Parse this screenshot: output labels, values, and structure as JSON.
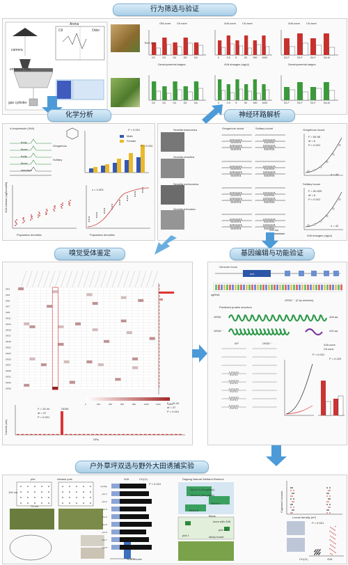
{
  "sections": {
    "s1": "行为筛选与验证",
    "s2": "化学分析",
    "s3": "神经环路解析",
    "s4": "嗅觉受体鉴定",
    "s5": "基因编辑与功能验证",
    "s6": "户外草坪双选与野外大田诱捕实验"
  },
  "panel1": {
    "labels": {
      "camera": "camera",
      "entrance": "entrance hole",
      "gas": "gas cylinder",
      "arena": "Arena",
      "odor": "Odor",
      "ctrl": "Ctl"
    },
    "bars_left": {
      "legend_a": "OM zone",
      "legend_b": "Ctl zone",
      "xlabel": "Developmental stages",
      "ylabel": "Time (%)",
      "categories": [
        "G2",
        "G3",
        "G4",
        "G5",
        "GA"
      ]
    },
    "bars_mid": {
      "legend_a": "4VA zone",
      "legend_b": "Ctl zone",
      "xlabel": "4VA dosages (ng/μl)",
      "categories": [
        "0",
        "0.5",
        "5",
        "50",
        "500",
        "1000"
      ]
    },
    "bars_right": {
      "legend_a": "4VA zone",
      "legend_b": "Ctl zone",
      "xlabel": "Developmental stages",
      "categories": [
        "S2-F",
        "S3-F",
        "S4-F",
        "SA-M"
      ]
    }
  },
  "panel2": {
    "compound": "4-vinylanisole (4VA)",
    "traces": [
      "body",
      "feces",
      "body",
      "feces",
      "standard"
    ],
    "trace_groups": [
      "Gregarious",
      "Solitary"
    ],
    "legend": [
      "Male",
      "Female"
    ],
    "xlabel": "Population densities",
    "ylabel": "4VA release (ng/locust/h)",
    "fit": "x = 4.404",
    "stats": [
      "P = 0.001",
      "P = 0.004"
    ]
  },
  "panel3": {
    "sensilla": [
      "Sensilla basiconica",
      "Sensilla chaetica",
      "Sensilla coeloconica",
      "Sensilla trichodea"
    ],
    "doses": [
      "control",
      "5 ng/μl",
      "500 ng/μl"
    ],
    "columns": [
      "Gregarious locust",
      "Solitary locust"
    ],
    "scale": "200 ms",
    "ylabel": "Spikes/s",
    "greg_stats": [
      "F = 85.58",
      "df = 6",
      "P < 0.001",
      "n = 44"
    ],
    "sol_stats": [
      "F = 50.529",
      "df = 6",
      "P < 0.001",
      "n = 43"
    ],
    "xlabel": "4VA dosages (ng/μl)"
  },
  "panel4": {
    "colorbar_ticks": [
      "0",
      "200",
      "400",
      "600",
      "800",
      "1000",
      "1200",
      "1400"
    ],
    "rows": [
      "OR1",
      "OR2",
      "OR3",
      "OR4",
      "OR5",
      "OR6",
      "OR7",
      "OR8",
      "OR9",
      "OR10",
      "OR11",
      "OR12",
      "OR13",
      "OR14",
      "OR15",
      "OR16",
      "OR17",
      "OR18",
      "OR19",
      "OR20",
      "OR21",
      "OR22",
      "OR23",
      "OR24",
      "OR25",
      "OR26",
      "OR27",
      "OR28",
      "OR29",
      "OR30",
      "OR31",
      "OR32",
      "OR33",
      "OR34",
      "OR35"
    ],
    "highlight": "OR35",
    "current_label": "Current (nA)",
    "xaxis": "ORs",
    "stats": [
      "F = 15.44",
      "df = 37",
      "P < 0.001"
    ]
  },
  "panel5": {
    "title": "Genome locus",
    "exon": "ex1",
    "sgRNA": "sgRNA",
    "deletion": "OR35⁻⁻ (2 bp deletion)",
    "structure_title": "Predicted protein structure",
    "wt": "OR35",
    "mut": "OR35⁻⁻",
    "len_wt": "408 aa",
    "len_mut": "220 aa",
    "groups": [
      "WT",
      "OR35⁻⁻"
    ],
    "legend": [
      "4VA zone",
      "Ctl zone"
    ],
    "stats": [
      "P < 0.001",
      "P = 0.220"
    ]
  },
  "panel6": {
    "arena_labels": [
      "plot",
      "release pole"
    ],
    "dims": [
      "100 cm",
      "70 cm"
    ],
    "treatments": [
      "CH₂Cl₂",
      "4VA"
    ],
    "plots": [
      "overlap",
      "plot 1",
      "plot 2",
      "plot 3",
      "plot 4",
      "plot 5",
      "plot 6",
      "plot 7",
      "plot 8"
    ],
    "xaxis": "% of locusts",
    "site": "Dagang Natural Wetland Reserve",
    "blocks": [
      "Block 5 (Zengfuba)",
      "Block 6 (Zengfuba)",
      "Block 7",
      "Block 8"
    ],
    "block": "Block",
    "lures": "lures with 4VA",
    "plot15": "plot 15",
    "sticky": "sticky board",
    "plot1": "plot 1",
    "traps_ylabel": "Captured Locusts",
    "density_x": "Locust density (m²)",
    "stat": "P < 0.001"
  }
}
